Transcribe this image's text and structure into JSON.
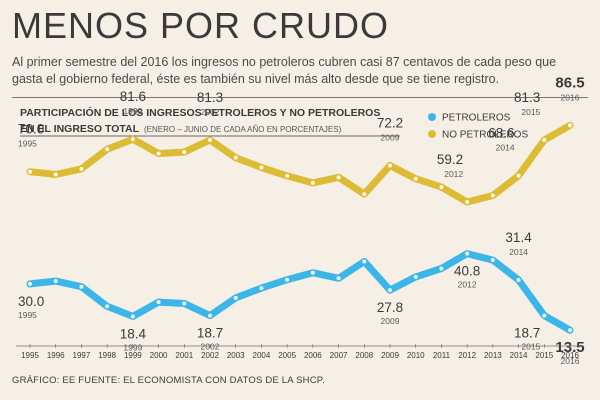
{
  "header": {
    "title": "MENOS POR CRUDO",
    "subtitle": "Al primer semestre del 2016 los ingresos no petroleros cubren casi 87 centavos de cada peso que gasta el gobierno federal, éste es también su nivel más alto desde que se tiene registro."
  },
  "footer": {
    "source": "GRÁFICO: EE  FUENTE: EL ECONOMISTA CON DATOS DE LA SHCP."
  },
  "chart_data": {
    "type": "line",
    "title_line1": "PARTICIPACIÓN DE LOS INGRESOS PETROLEROS Y NO PETROLEROS",
    "title_line2": "EN EL INGRESO TOTAL",
    "title_note": "(ENERO – JUNIO DE CADA AÑO EN PORCENTAJES)",
    "xlabel": "",
    "ylabel": "",
    "ylim": [
      10,
      92
    ],
    "grid": false,
    "legend_position": "top-right",
    "categories": [
      "1995",
      "1996",
      "1997",
      "1998",
      "1999",
      "2000",
      "2001",
      "2002",
      "2003",
      "2004",
      "2005",
      "2006",
      "2007",
      "2008",
      "2009",
      "2010",
      "2011",
      "2012",
      "2013",
      "2014",
      "2015",
      "2016"
    ],
    "series": [
      {
        "name": "PETROLEROS",
        "color": "#3cb6e8",
        "values": [
          30.0,
          31.0,
          29.0,
          22.0,
          18.4,
          23.5,
          23.0,
          18.7,
          25.0,
          28.5,
          31.5,
          34.0,
          32.0,
          38.0,
          27.8,
          32.5,
          35.5,
          40.8,
          38.5,
          31.4,
          18.7,
          13.5
        ]
      },
      {
        "name": "NO PETROLEROS",
        "color": "#dcbc35",
        "values": [
          70.0,
          69.0,
          71.0,
          78.0,
          81.6,
          76.5,
          77.0,
          81.3,
          75.0,
          71.5,
          68.5,
          66.0,
          68.0,
          62.0,
          72.2,
          67.5,
          64.5,
          59.2,
          61.5,
          68.6,
          81.3,
          86.5
        ]
      }
    ],
    "annotations": [
      {
        "series": "NO PETROLEROS",
        "year": "1995",
        "value": "70.0",
        "place": "above-left"
      },
      {
        "series": "NO PETROLEROS",
        "year": "1999",
        "value": "81.6",
        "place": "above"
      },
      {
        "series": "NO PETROLEROS",
        "year": "2002",
        "value": "81.3",
        "place": "above"
      },
      {
        "series": "NO PETROLEROS",
        "year": "2009",
        "value": "72.2",
        "place": "above"
      },
      {
        "series": "NO PETROLEROS",
        "year": "2012",
        "value": "59.2",
        "place": "above-left"
      },
      {
        "series": "NO PETROLEROS",
        "year": "2014",
        "value": "68.6",
        "place": "above-left"
      },
      {
        "series": "NO PETROLEROS",
        "year": "2015",
        "value": "81.3",
        "place": "above-left"
      },
      {
        "series": "NO PETROLEROS",
        "year": "2016",
        "value": "86.5",
        "place": "above"
      },
      {
        "series": "PETROLEROS",
        "year": "1995",
        "value": "30.0",
        "place": "below"
      },
      {
        "series": "PETROLEROS",
        "year": "1999",
        "value": "18.4",
        "place": "below"
      },
      {
        "series": "PETROLEROS",
        "year": "2002",
        "value": "18.7",
        "place": "below"
      },
      {
        "series": "PETROLEROS",
        "year": "2009",
        "value": "27.8",
        "place": "below"
      },
      {
        "series": "PETROLEROS",
        "year": "2012",
        "value": "40.8",
        "place": "below"
      },
      {
        "series": "PETROLEROS",
        "year": "2014",
        "value": "31.4",
        "place": "above"
      },
      {
        "series": "PETROLEROS",
        "year": "2015",
        "value": "18.7",
        "place": "below-left"
      },
      {
        "series": "PETROLEROS",
        "year": "2016",
        "value": "13.5",
        "place": "below"
      }
    ]
  }
}
